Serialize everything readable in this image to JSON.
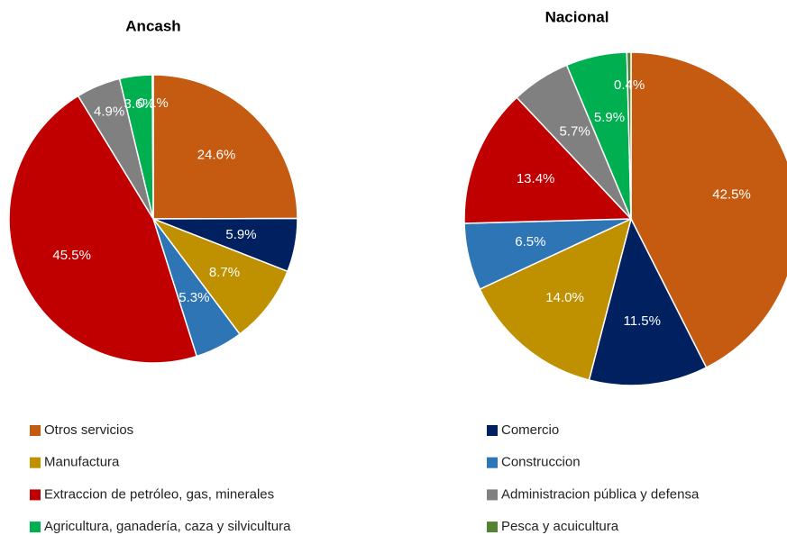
{
  "chart_data": [
    {
      "type": "pie",
      "title": "Ancash",
      "values": [
        24.6,
        5.9,
        8.7,
        5.3,
        45.5,
        4.9,
        3.6,
        0.1
      ],
      "value_labels": [
        "24.6%",
        "5.9%",
        "8.7%",
        "5.3%",
        "45.5%",
        "4.9%",
        "3.6%",
        "0.1%"
      ]
    },
    {
      "type": "pie",
      "title": "Nacional",
      "values": [
        42.5,
        11.5,
        14.0,
        6.5,
        13.4,
        5.7,
        5.9,
        0.4
      ],
      "value_labels": [
        "42.5%",
        "11.5%",
        "14.0%",
        "6.5%",
        "13.4%",
        "5.7%",
        "5.9%",
        "0.4%"
      ]
    }
  ],
  "legend": {
    "categories": [
      "Otros servicios",
      "Comercio",
      "Manufactura",
      "Construccion",
      "Extraccion de petróleo, gas, minerales",
      "Administracion pública y defensa",
      "Agricultura, ganadería, caza y silvicultura",
      "Pesca y acuicultura"
    ],
    "colors": [
      "#c55a11",
      "#002060",
      "#bf9000",
      "#2e75b6",
      "#c00000",
      "#808080",
      "#00b050",
      "#548235"
    ]
  }
}
